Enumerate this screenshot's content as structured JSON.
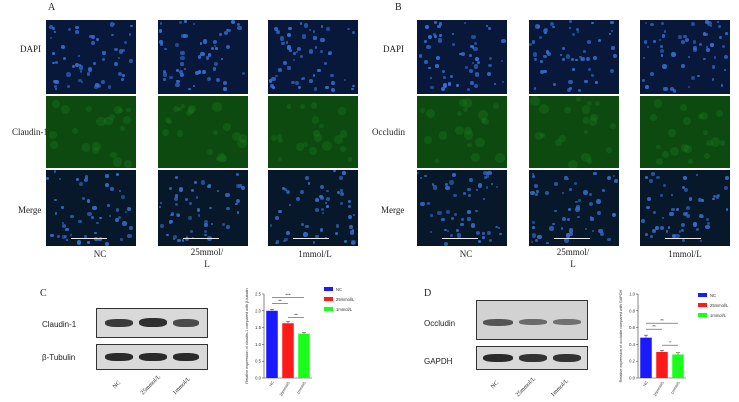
{
  "panelA": {
    "letter": "A",
    "rows": [
      "DAPI",
      "Claudin-1",
      "Merge"
    ],
    "columns": [
      "NC",
      "25mmol/\nL",
      "1mmol/L"
    ]
  },
  "panelB": {
    "letter": "B",
    "rows": [
      "DAPI",
      "Occludin",
      "Merge"
    ],
    "columns": [
      "NC",
      "25mmol/\nL",
      "1mmol/L"
    ]
  },
  "panelC": {
    "letter": "C",
    "blot_labels": [
      "Claudin-1",
      "β-Tubulin"
    ],
    "lanes": [
      "NC",
      "25mmol/L",
      "1mmol/L"
    ],
    "chart_data": {
      "type": "bar",
      "categories": [
        "NC",
        "25mmol/L",
        "1mmol/L"
      ],
      "values": [
        2.0,
        1.63,
        1.32
      ],
      "errors": [
        0.04,
        0.05,
        0.03
      ],
      "colors": [
        "#1a1aff",
        "#ff1a1a",
        "#1aff1a"
      ],
      "ylabel": "Relative expression of claudin-1 compared with β-tubulin",
      "ylim": [
        0,
        2.5
      ],
      "yticks": [
        "0.0",
        "0.5",
        "1.0",
        "1.5",
        "2.0",
        "2.5"
      ],
      "legend": [
        "NC",
        "25mmol/L",
        "1mmol/L"
      ],
      "significance": [
        "***",
        "**",
        "**"
      ]
    }
  },
  "panelD": {
    "letter": "D",
    "blot_labels": [
      "Occludin",
      "GAPDH"
    ],
    "lanes": [
      "NC",
      "25mmol/L",
      "1mmol/L"
    ],
    "chart_data": {
      "type": "bar",
      "categories": [
        "NC",
        "25mmol/L",
        "1mmol/L"
      ],
      "values": [
        0.48,
        0.31,
        0.28
      ],
      "errors": [
        0.03,
        0.02,
        0.02
      ],
      "colors": [
        "#1a1aff",
        "#ff1a1a",
        "#1aff1a"
      ],
      "ylabel": "Relative expression of occludin compared with GAPDH",
      "ylim": [
        0,
        1.0
      ],
      "yticks": [
        "0.0",
        "0.2",
        "0.4",
        "0.6",
        "0.8",
        "1.0"
      ],
      "legend": [
        "NC",
        "25mmol/L",
        "1mmol/L"
      ],
      "significance": [
        "**",
        "**",
        "*"
      ]
    }
  }
}
